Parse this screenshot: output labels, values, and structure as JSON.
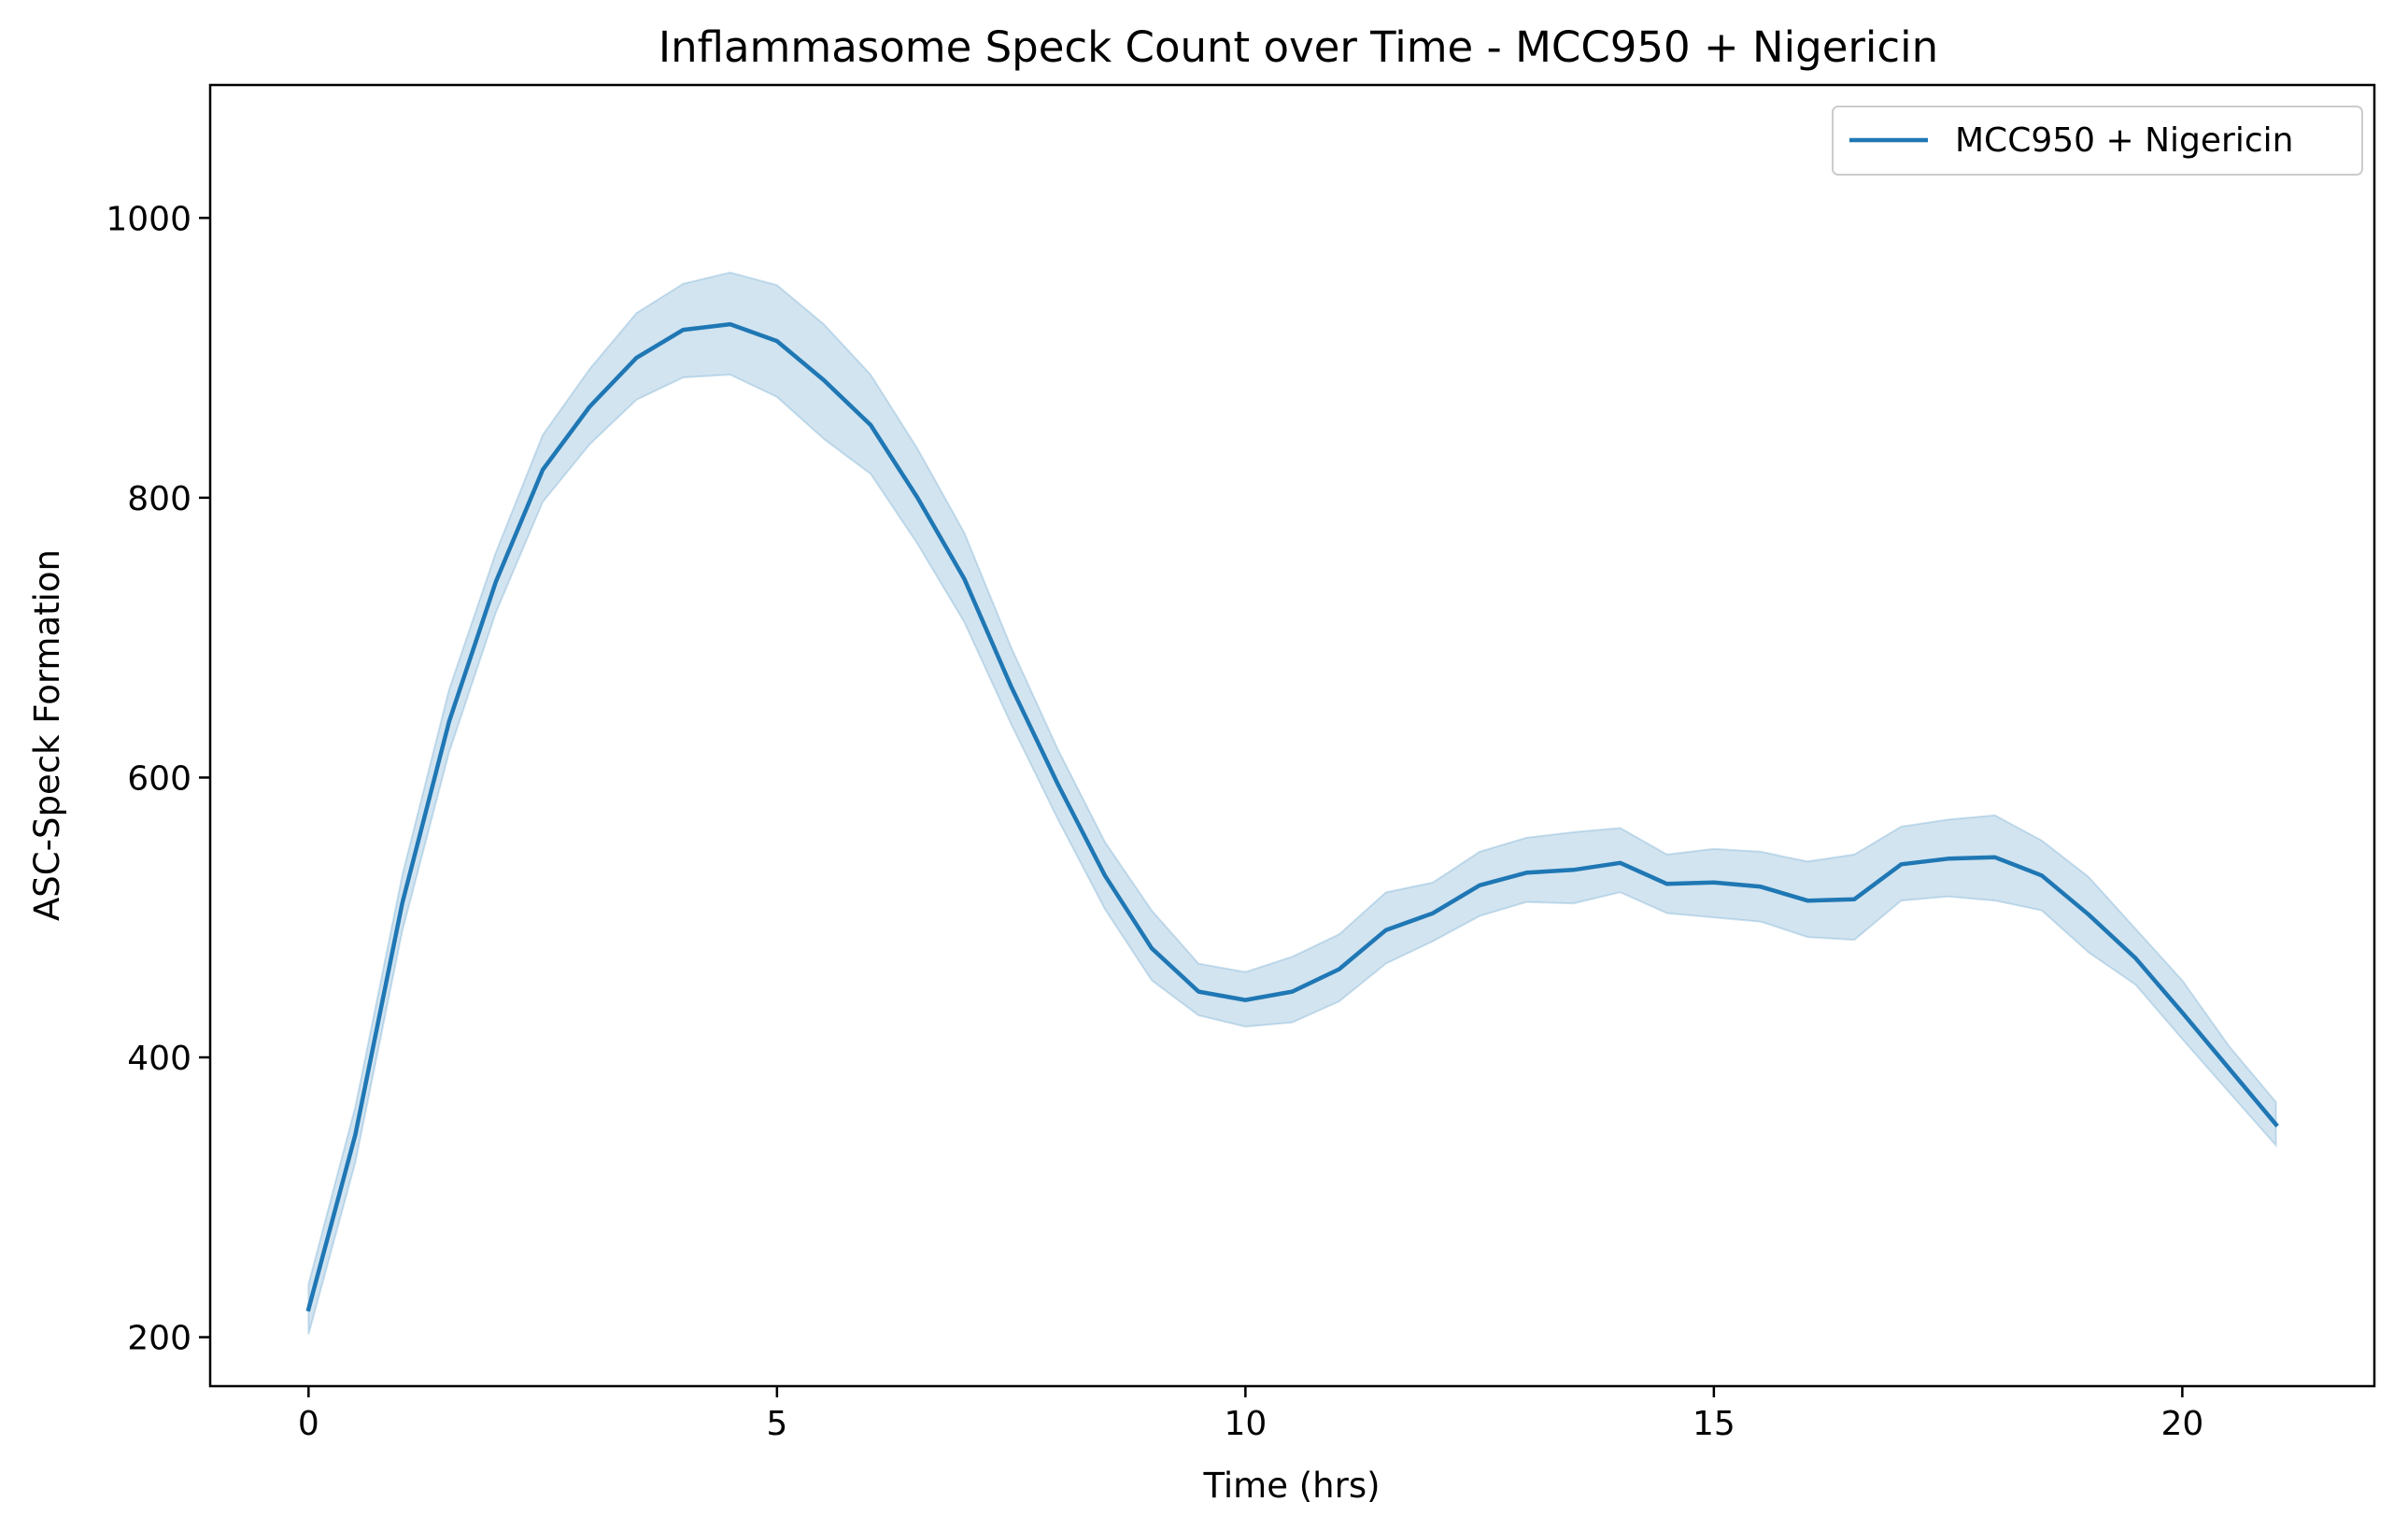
{
  "chart_data": {
    "type": "line",
    "title": "Inflammasome Speck Count over Time - MCC950 + Nigericin",
    "xlabel": "Time (hrs)",
    "ylabel": "ASC-Speck Formation",
    "xlim": [
      -1.05,
      22.05
    ],
    "ylim": [
      165,
      1095
    ],
    "xticks": [
      0,
      5,
      10,
      15,
      20
    ],
    "xtick_labels": [
      "0",
      "5",
      "10",
      "15",
      "20"
    ],
    "yticks": [
      200,
      400,
      600,
      800,
      1000
    ],
    "ytick_labels": [
      "200",
      "400",
      "600",
      "800",
      "1000"
    ],
    "grid": false,
    "legend_position": "top-right",
    "series": [
      {
        "name": "MCC950 + Nigericin",
        "color": "#1f77b4",
        "band_color": "#1f77b4",
        "x": [
          0,
          0.5,
          1,
          1.5,
          2,
          2.5,
          3,
          3.5,
          4,
          4.5,
          5,
          5.5,
          6,
          6.5,
          7,
          7.5,
          8,
          8.5,
          9,
          9.5,
          10,
          10.5,
          11,
          11.5,
          12,
          12.5,
          13,
          13.5,
          14,
          14.5,
          15,
          15.5,
          16,
          16.5,
          17,
          17.5,
          18,
          18.5,
          19,
          19.5,
          20,
          20.5,
          21
        ],
        "y": [
          220,
          345,
          510,
          640,
          740,
          820,
          865,
          900,
          920,
          924,
          912,
          884,
          852,
          800,
          742,
          665,
          595,
          530,
          478,
          447,
          441,
          447,
          463,
          491,
          503,
          523,
          532,
          534,
          539,
          524,
          525,
          522,
          512,
          513,
          538,
          542,
          543,
          530,
          502,
          471,
          432,
          392,
          352
        ],
        "lower": [
          202,
          325,
          490,
          618,
          718,
          797,
          838,
          870,
          886,
          888,
          872,
          842,
          817,
          767,
          711,
          638,
          570,
          506,
          455,
          430,
          422,
          425,
          440,
          467,
          483,
          501,
          511,
          510,
          518,
          503,
          500,
          497,
          486,
          484,
          512,
          515,
          512,
          505,
          475,
          452,
          413,
          375,
          337
        ],
        "upper": [
          238,
          365,
          530,
          663,
          761,
          845,
          892,
          932,
          953,
          961,
          952,
          924,
          888,
          835,
          775,
          693,
          620,
          554,
          505,
          467,
          461,
          472,
          488,
          518,
          525,
          547,
          557,
          561,
          564,
          545,
          549,
          547,
          540,
          545,
          565,
          570,
          573,
          555,
          529,
          492,
          455,
          408,
          368
        ]
      }
    ]
  }
}
